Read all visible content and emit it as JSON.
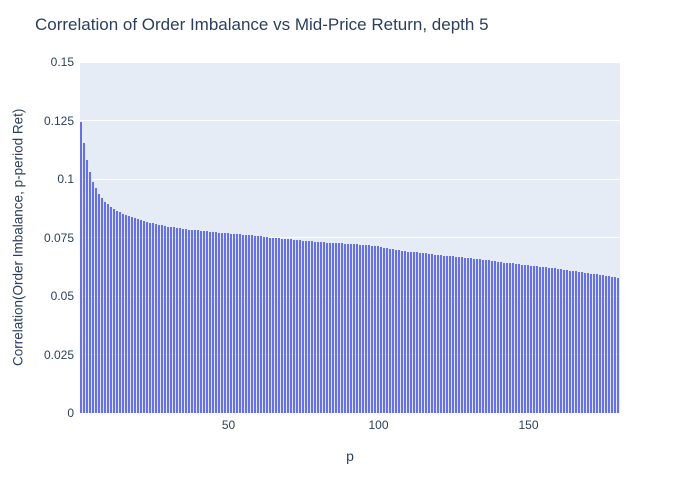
{
  "title": "Correlation of Order Imbalance vs Mid-Price Return, depth 5",
  "axes": {
    "x_title": "p",
    "y_title": "Correlation(Order Imbalance, p-period Ret)",
    "y_ticks": [
      "0",
      "0.025",
      "0.05",
      "0.075",
      "0.1",
      "0.125",
      "0.15"
    ],
    "x_ticks": [
      "50",
      "100",
      "150"
    ]
  },
  "colors": {
    "bar": "#636efa",
    "plot_background": "#e5ecf6",
    "gridline": "#ffffff",
    "text": "#2a3f5f"
  },
  "chart_data": {
    "type": "bar",
    "title": "Correlation of Order Imbalance vs Mid-Price Return, depth 5",
    "xlabel": "p",
    "ylabel": "Correlation(Order Imbalance, p-period Ret)",
    "x_start": 1,
    "x_step": 1,
    "x_end": 180,
    "xlim": [
      0.5,
      180.5
    ],
    "ylim": [
      0,
      0.15
    ],
    "grid": true,
    "legend_shown": false,
    "values": [
      0.1245,
      0.1153,
      0.1081,
      0.1031,
      0.0989,
      0.096,
      0.0935,
      0.0918,
      0.0903,
      0.0892,
      0.0882,
      0.0873,
      0.0865,
      0.0858,
      0.0852,
      0.0846,
      0.0841,
      0.0836,
      0.0832,
      0.0828,
      0.0824,
      0.0821,
      0.0817,
      0.0814,
      0.081,
      0.0807,
      0.0805,
      0.0802,
      0.08,
      0.0797,
      0.0795,
      0.0793,
      0.0791,
      0.0789,
      0.0787,
      0.0786,
      0.0784,
      0.0783,
      0.0781,
      0.078,
      0.0778,
      0.0777,
      0.0776,
      0.0774,
      0.0773,
      0.0772,
      0.0771,
      0.077,
      0.0769,
      0.0768,
      0.0767,
      0.0766,
      0.0765,
      0.0763,
      0.0762,
      0.0761,
      0.076,
      0.0759,
      0.0757,
      0.0756,
      0.0755,
      0.0753,
      0.0752,
      0.075,
      0.0749,
      0.0748,
      0.0747,
      0.0745,
      0.0744,
      0.0743,
      0.0742,
      0.074,
      0.0739,
      0.0738,
      0.0737,
      0.0736,
      0.0735,
      0.0733,
      0.0732,
      0.0731,
      0.073,
      0.0729,
      0.0728,
      0.0728,
      0.0727,
      0.0726,
      0.0725,
      0.0725,
      0.0724,
      0.0723,
      0.0722,
      0.0722,
      0.0721,
      0.072,
      0.072,
      0.0718,
      0.0717,
      0.0715,
      0.0714,
      0.0712,
      0.0709,
      0.0707,
      0.0704,
      0.0702,
      0.0699,
      0.0697,
      0.0695,
      0.0694,
      0.0692,
      0.069,
      0.0689,
      0.0687,
      0.0686,
      0.0684,
      0.0683,
      0.0682,
      0.068,
      0.0679,
      0.0677,
      0.0676,
      0.0674,
      0.0673,
      0.0671,
      0.067,
      0.0669,
      0.0667,
      0.0666,
      0.0665,
      0.0663,
      0.0662,
      0.0661,
      0.066,
      0.0658,
      0.0657,
      0.0656,
      0.0654,
      0.0652,
      0.065,
      0.0648,
      0.0646,
      0.0645,
      0.0643,
      0.0642,
      0.064,
      0.0639,
      0.0637,
      0.0636,
      0.0634,
      0.0633,
      0.0631,
      0.063,
      0.0628,
      0.0627,
      0.0625,
      0.0624,
      0.0622,
      0.0621,
      0.0619,
      0.0618,
      0.0616,
      0.0614,
      0.0612,
      0.0611,
      0.0609,
      0.0607,
      0.0605,
      0.0604,
      0.0602,
      0.06,
      0.0598,
      0.0596,
      0.0594,
      0.0592,
      0.059,
      0.0588,
      0.0586,
      0.0584,
      0.0582,
      0.058,
      0.0578
    ]
  }
}
